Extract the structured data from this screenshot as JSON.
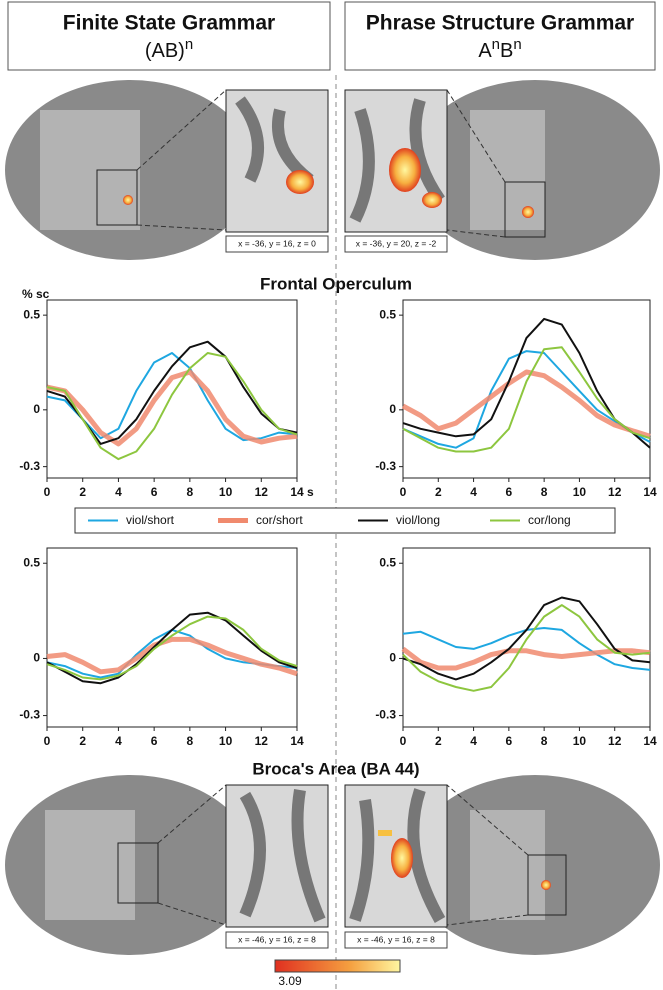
{
  "headers": [
    {
      "title": "Finite State Grammar",
      "notation": [
        "(AB)",
        "n"
      ]
    },
    {
      "title": "Phrase Structure Grammar",
      "notation": [
        "A",
        "n",
        "B",
        "n"
      ]
    }
  ],
  "coordinates": [
    "x = -36, y = 16, z = 0",
    "x = -36, y = 20, z = -2",
    "x = -46, y = 16, z = 8",
    "x = -46, y = 16, z = 8"
  ],
  "section_titles": [
    "Frontal Operculum",
    "Broca's Area (BA 44)"
  ],
  "colorbar_label": "3.09",
  "chart_data": [
    {
      "type": "line",
      "ylabel": "% sc",
      "xlabel": "s",
      "x": [
        0,
        1,
        2,
        3,
        4,
        5,
        6,
        7,
        8,
        9,
        10,
        11,
        12,
        13,
        14
      ],
      "xlim": [
        0,
        14
      ],
      "ylim": [
        -0.36,
        0.58
      ],
      "xticks": [
        0,
        2,
        4,
        6,
        8,
        10,
        12,
        14
      ],
      "yticks": [
        -0.3,
        0,
        0.5
      ],
      "series": [
        {
          "name": "viol/short",
          "color": "#1ea7e1",
          "values": [
            0.07,
            0.05,
            -0.05,
            -0.15,
            -0.1,
            0.1,
            0.25,
            0.3,
            0.22,
            0.05,
            -0.1,
            -0.16,
            -0.15,
            -0.12,
            -0.13
          ]
        },
        {
          "name": "cor/short",
          "color": "#f08a6e",
          "values": [
            0.12,
            0.1,
            0,
            -0.12,
            -0.18,
            -0.1,
            0.05,
            0.17,
            0.2,
            0.1,
            -0.05,
            -0.14,
            -0.17,
            -0.15,
            -0.14
          ]
        },
        {
          "name": "viol/long",
          "color": "#111111",
          "values": [
            0.1,
            0.07,
            -0.05,
            -0.18,
            -0.15,
            -0.05,
            0.1,
            0.23,
            0.33,
            0.36,
            0.28,
            0.12,
            -0.02,
            -0.1,
            -0.12
          ]
        },
        {
          "name": "cor/long",
          "color": "#8dc63f",
          "values": [
            0.12,
            0.1,
            -0.05,
            -0.2,
            -0.26,
            -0.22,
            -0.1,
            0.08,
            0.22,
            0.3,
            0.28,
            0.15,
            0,
            -0.1,
            -0.13
          ]
        }
      ]
    },
    {
      "type": "line",
      "x": [
        0,
        1,
        2,
        3,
        4,
        5,
        6,
        7,
        8,
        9,
        10,
        11,
        12,
        13,
        14
      ],
      "xlim": [
        0,
        14
      ],
      "ylim": [
        -0.36,
        0.58
      ],
      "xticks": [
        0,
        2,
        4,
        6,
        8,
        10,
        12,
        14
      ],
      "yticks": [
        -0.3,
        0,
        0.5
      ],
      "series": [
        {
          "color": "#1ea7e1",
          "values": [
            -0.1,
            -0.14,
            -0.18,
            -0.2,
            -0.15,
            0.1,
            0.27,
            0.31,
            0.3,
            0.2,
            0.1,
            0,
            -0.06,
            -0.12,
            -0.17
          ]
        },
        {
          "color": "#f08a6e",
          "values": [
            0.02,
            -0.03,
            -0.1,
            -0.07,
            0,
            0.07,
            0.14,
            0.2,
            0.18,
            0.12,
            0.05,
            -0.03,
            -0.08,
            -0.11,
            -0.14
          ]
        },
        {
          "color": "#111111",
          "values": [
            -0.07,
            -0.1,
            -0.12,
            -0.14,
            -0.13,
            -0.05,
            0.15,
            0.38,
            0.48,
            0.45,
            0.3,
            0.1,
            -0.05,
            -0.12,
            -0.2
          ]
        },
        {
          "color": "#8dc63f",
          "values": [
            -0.1,
            -0.15,
            -0.2,
            -0.22,
            -0.22,
            -0.2,
            -0.1,
            0.15,
            0.32,
            0.33,
            0.2,
            0.06,
            -0.05,
            -0.12,
            -0.15
          ]
        }
      ]
    },
    {
      "type": "line",
      "x": [
        0,
        1,
        2,
        3,
        4,
        5,
        6,
        7,
        8,
        9,
        10,
        11,
        12,
        13,
        14
      ],
      "xlim": [
        0,
        14
      ],
      "ylim": [
        -0.36,
        0.58
      ],
      "xticks": [
        0,
        2,
        4,
        6,
        8,
        10,
        12,
        14
      ],
      "yticks": [
        -0.3,
        0,
        0.5
      ],
      "series": [
        {
          "color": "#1ea7e1",
          "values": [
            -0.02,
            -0.04,
            -0.08,
            -0.1,
            -0.08,
            0.02,
            0.1,
            0.15,
            0.12,
            0.05,
            0,
            -0.02,
            -0.03,
            -0.04,
            -0.05
          ]
        },
        {
          "color": "#f08a6e",
          "values": [
            0.01,
            0.02,
            -0.02,
            -0.07,
            -0.06,
            0,
            0.07,
            0.1,
            0.1,
            0.07,
            0.03,
            0,
            -0.03,
            -0.05,
            -0.08
          ]
        },
        {
          "color": "#111111",
          "values": [
            -0.02,
            -0.07,
            -0.12,
            -0.13,
            -0.1,
            -0.03,
            0.06,
            0.15,
            0.23,
            0.24,
            0.2,
            0.12,
            0.04,
            -0.02,
            -0.05
          ]
        },
        {
          "color": "#8dc63f",
          "values": [
            -0.03,
            -0.06,
            -0.1,
            -0.11,
            -0.09,
            -0.04,
            0.05,
            0.12,
            0.18,
            0.22,
            0.21,
            0.15,
            0.05,
            -0.01,
            -0.04
          ]
        }
      ]
    },
    {
      "type": "line",
      "x": [
        0,
        1,
        2,
        3,
        4,
        5,
        6,
        7,
        8,
        9,
        10,
        11,
        12,
        13,
        14
      ],
      "xlim": [
        0,
        14
      ],
      "ylim": [
        -0.36,
        0.58
      ],
      "xticks": [
        0,
        2,
        4,
        6,
        8,
        10,
        12,
        14
      ],
      "yticks": [
        -0.3,
        0,
        0.5
      ],
      "series": [
        {
          "color": "#1ea7e1",
          "values": [
            0.13,
            0.14,
            0.1,
            0.06,
            0.05,
            0.08,
            0.12,
            0.15,
            0.16,
            0.15,
            0.08,
            0.02,
            -0.03,
            -0.05,
            -0.06
          ]
        },
        {
          "color": "#f08a6e",
          "values": [
            0.05,
            -0.02,
            -0.05,
            -0.05,
            -0.02,
            0.02,
            0.04,
            0.04,
            0.02,
            0.01,
            0.02,
            0.03,
            0.04,
            0.04,
            0.03
          ]
        },
        {
          "color": "#111111",
          "values": [
            0,
            -0.03,
            -0.08,
            -0.11,
            -0.08,
            -0.02,
            0.05,
            0.15,
            0.28,
            0.32,
            0.3,
            0.18,
            0.05,
            -0.01,
            -0.02
          ]
        },
        {
          "color": "#8dc63f",
          "values": [
            0.02,
            -0.07,
            -0.12,
            -0.15,
            -0.17,
            -0.15,
            -0.05,
            0.1,
            0.22,
            0.28,
            0.22,
            0.1,
            0.03,
            0.02,
            0.03
          ]
        }
      ]
    }
  ]
}
